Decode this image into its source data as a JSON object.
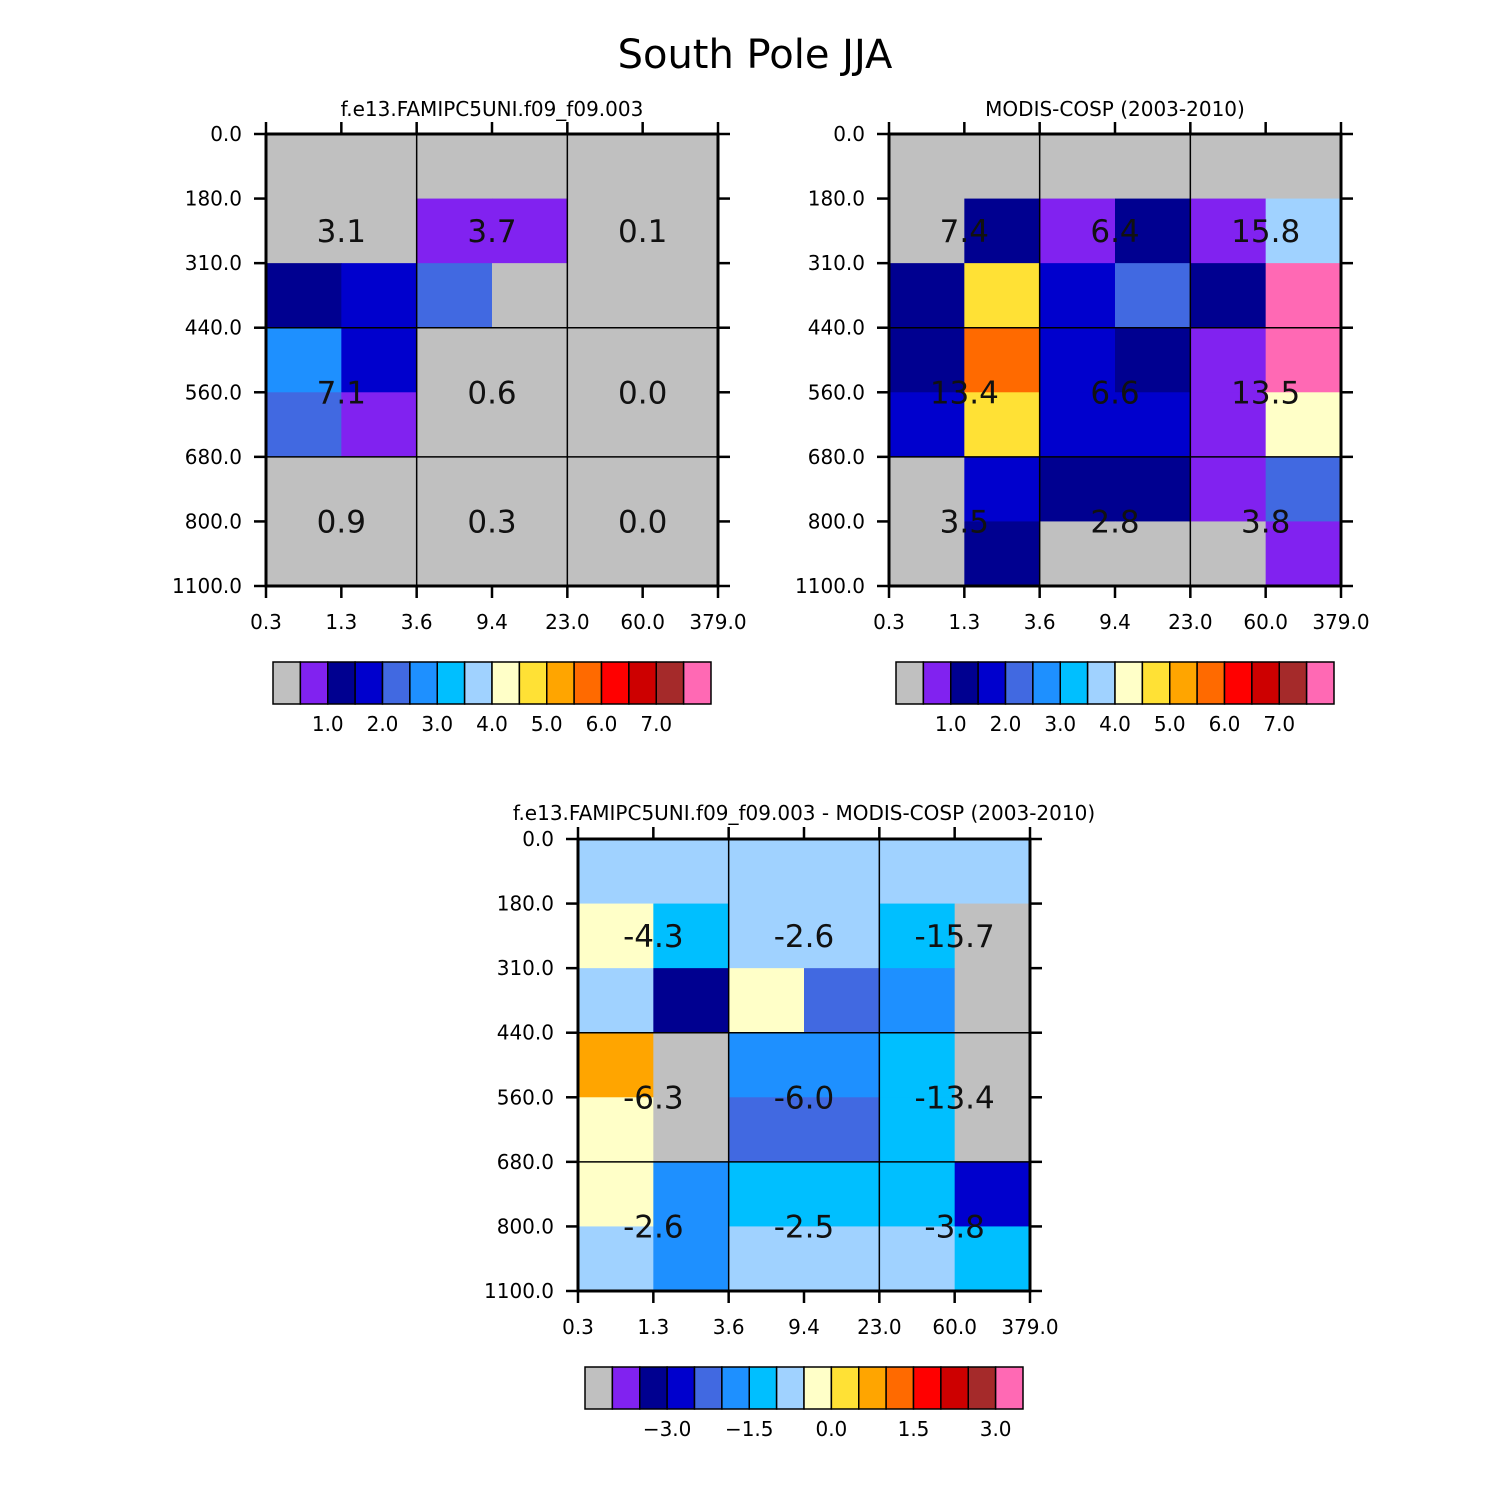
{
  "figure_title": "South Pole JJA",
  "y_tick_labels": [
    "0.0",
    "180.0",
    "310.0",
    "440.0",
    "560.0",
    "680.0",
    "800.0",
    "1100.0"
  ],
  "x_tick_labels": [
    "0.3",
    "1.3",
    "3.6",
    "9.4",
    "23.0",
    "60.0",
    "379.0"
  ],
  "chart_data": [
    {
      "type": "heatmap",
      "title": "f.e13.FAMIPC5UNI.f09_f09.003",
      "x_bins": [
        "0.3",
        "1.3",
        "3.6",
        "9.4",
        "23.0",
        "60.0",
        "379.0"
      ],
      "y_bins": [
        "0.0",
        "180.0",
        "310.0",
        "440.0",
        "560.0",
        "680.0",
        "800.0",
        "1100.0"
      ],
      "cell_colors": [
        [
          "#c0c0c0",
          "#c0c0c0",
          "#c0c0c0",
          "#c0c0c0",
          "#c0c0c0",
          "#c0c0c0"
        ],
        [
          "#c0c0c0",
          "#c0c0c0",
          "#8122f0",
          "#8122f0",
          "#c0c0c0",
          "#c0c0c0"
        ],
        [
          "#000090",
          "#0000cd",
          "#4169e1",
          "#c0c0c0",
          "#c0c0c0",
          "#c0c0c0"
        ],
        [
          "#1e90ff",
          "#0000cd",
          "#c0c0c0",
          "#c0c0c0",
          "#c0c0c0",
          "#c0c0c0"
        ],
        [
          "#4169e1",
          "#8122f0",
          "#c0c0c0",
          "#c0c0c0",
          "#c0c0c0",
          "#c0c0c0"
        ],
        [
          "#c0c0c0",
          "#c0c0c0",
          "#c0c0c0",
          "#c0c0c0",
          "#c0c0c0",
          "#c0c0c0"
        ],
        [
          "#c0c0c0",
          "#c0c0c0",
          "#c0c0c0",
          "#c0c0c0",
          "#c0c0c0",
          "#c0c0c0"
        ]
      ],
      "region_values": [
        [
          "3.1",
          "3.7",
          "0.1"
        ],
        [
          "7.1",
          "0.6",
          "0.0"
        ],
        [
          "0.9",
          "0.3",
          "0.0"
        ]
      ],
      "colorbar": {
        "colors": [
          "#c0c0c0",
          "#8122f0",
          "#000090",
          "#0000cd",
          "#4169e1",
          "#1e90ff",
          "#00bfff",
          "#a0d2ff",
          "#ffffc8",
          "#ffe135",
          "#ffa500",
          "#ff6a00",
          "#ff0000",
          "#cd0000",
          "#a52a2a",
          "#ff69b4"
        ],
        "labels": [
          "1.0",
          "2.0",
          "3.0",
          "4.0",
          "5.0",
          "6.0",
          "7.0"
        ],
        "label_boundaries": [
          2,
          4,
          6,
          8,
          10,
          12,
          14
        ]
      }
    },
    {
      "type": "heatmap",
      "title": "MODIS-COSP (2003-2010)",
      "x_bins": [
        "0.3",
        "1.3",
        "3.6",
        "9.4",
        "23.0",
        "60.0",
        "379.0"
      ],
      "y_bins": [
        "0.0",
        "180.0",
        "310.0",
        "440.0",
        "560.0",
        "680.0",
        "800.0",
        "1100.0"
      ],
      "cell_colors": [
        [
          "#c0c0c0",
          "#c0c0c0",
          "#c0c0c0",
          "#c0c0c0",
          "#c0c0c0",
          "#c0c0c0"
        ],
        [
          "#c0c0c0",
          "#000090",
          "#8122f0",
          "#000090",
          "#8122f0",
          "#a0d2ff"
        ],
        [
          "#000090",
          "#ffe135",
          "#0000cd",
          "#4169e1",
          "#000090",
          "#ff69b4"
        ],
        [
          "#000090",
          "#ff6a00",
          "#0000cd",
          "#000090",
          "#8122f0",
          "#ff69b4"
        ],
        [
          "#0000cd",
          "#ffe135",
          "#0000cd",
          "#0000cd",
          "#8122f0",
          "#ffffc8"
        ],
        [
          "#c0c0c0",
          "#0000cd",
          "#000090",
          "#000090",
          "#8122f0",
          "#4169e1"
        ],
        [
          "#c0c0c0",
          "#000090",
          "#c0c0c0",
          "#c0c0c0",
          "#c0c0c0",
          "#8122f0"
        ]
      ],
      "region_values": [
        [
          "7.4",
          "6.4",
          "15.8"
        ],
        [
          "13.4",
          "6.6",
          "13.5"
        ],
        [
          "3.5",
          "2.8",
          "3.8"
        ]
      ],
      "colorbar": {
        "colors": [
          "#c0c0c0",
          "#8122f0",
          "#000090",
          "#0000cd",
          "#4169e1",
          "#1e90ff",
          "#00bfff",
          "#a0d2ff",
          "#ffffc8",
          "#ffe135",
          "#ffa500",
          "#ff6a00",
          "#ff0000",
          "#cd0000",
          "#a52a2a",
          "#ff69b4"
        ],
        "labels": [
          "1.0",
          "2.0",
          "3.0",
          "4.0",
          "5.0",
          "6.0",
          "7.0"
        ],
        "label_boundaries": [
          2,
          4,
          6,
          8,
          10,
          12,
          14
        ]
      }
    },
    {
      "type": "heatmap",
      "title": "f.e13.FAMIPC5UNI.f09_f09.003 - MODIS-COSP (2003-2010)",
      "x_bins": [
        "0.3",
        "1.3",
        "3.6",
        "9.4",
        "23.0",
        "60.0",
        "379.0"
      ],
      "y_bins": [
        "0.0",
        "180.0",
        "310.0",
        "440.0",
        "560.0",
        "680.0",
        "800.0",
        "1100.0"
      ],
      "cell_colors": [
        [
          "#a0d2ff",
          "#a0d2ff",
          "#a0d2ff",
          "#a0d2ff",
          "#a0d2ff",
          "#a0d2ff"
        ],
        [
          "#ffffc8",
          "#00bfff",
          "#a0d2ff",
          "#a0d2ff",
          "#00bfff",
          "#c0c0c0"
        ],
        [
          "#a0d2ff",
          "#000090",
          "#ffffc8",
          "#4169e1",
          "#1e90ff",
          "#c0c0c0"
        ],
        [
          "#ffa500",
          "#c0c0c0",
          "#1e90ff",
          "#1e90ff",
          "#00bfff",
          "#c0c0c0"
        ],
        [
          "#ffffc8",
          "#c0c0c0",
          "#4169e1",
          "#4169e1",
          "#00bfff",
          "#c0c0c0"
        ],
        [
          "#ffffc8",
          "#1e90ff",
          "#00bfff",
          "#00bfff",
          "#00bfff",
          "#0000cd"
        ],
        [
          "#a0d2ff",
          "#1e90ff",
          "#a0d2ff",
          "#a0d2ff",
          "#a0d2ff",
          "#00bfff"
        ]
      ],
      "region_values": [
        [
          "-4.3",
          "-2.6",
          "-15.7"
        ],
        [
          "-6.3",
          "-6.0",
          "-13.4"
        ],
        [
          "-2.6",
          "-2.5",
          "-3.8"
        ]
      ],
      "colorbar": {
        "colors": [
          "#c0c0c0",
          "#8122f0",
          "#000090",
          "#0000cd",
          "#4169e1",
          "#1e90ff",
          "#00bfff",
          "#a0d2ff",
          "#ffffc8",
          "#ffe135",
          "#ffa500",
          "#ff6a00",
          "#ff0000",
          "#cd0000",
          "#a52a2a",
          "#ff69b4"
        ],
        "labels": [
          "−3.0",
          "−1.5",
          "0.0",
          "1.5",
          "3.0"
        ],
        "label_boundaries": [
          3,
          6,
          9,
          12,
          15
        ]
      }
    }
  ]
}
